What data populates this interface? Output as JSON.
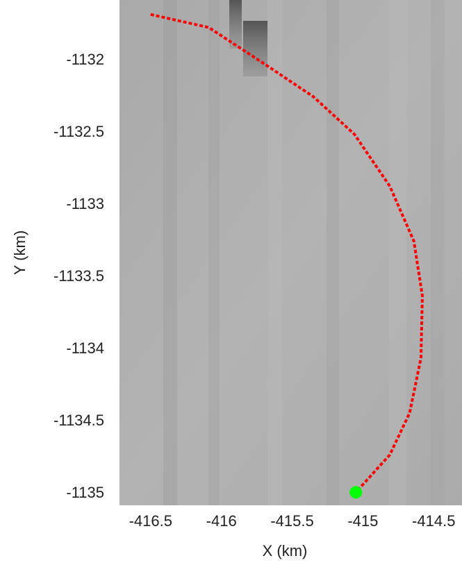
{
  "chart_data": {
    "type": "line",
    "xlabel": "X (km)",
    "ylabel": "Y (km)",
    "x": [
      -416.5,
      -416.09,
      -415.7,
      -415.35,
      -415.06,
      -414.81,
      -414.64,
      -414.58,
      -414.59,
      -414.67,
      -414.81,
      -415.05
    ],
    "values": [
      -1131.68,
      -1131.77,
      -1132.02,
      -1132.25,
      -1132.51,
      -1132.87,
      -1133.25,
      -1133.63,
      -1134.06,
      -1134.44,
      -1134.73,
      -1134.99
    ],
    "color": "#ff0000",
    "dashed": true,
    "start_point": {
      "x": -415.05,
      "y": -1134.99,
      "color": "#00ff00"
    },
    "xlim": [
      -416.72,
      -414.3
    ],
    "ylim": [
      -1135.08,
      -1131.58
    ],
    "xticks": [
      -416.5,
      -416,
      -415.5,
      -415,
      -414.5
    ],
    "yticks": [
      -1132,
      -1132.5,
      -1133,
      -1133.5,
      -1134,
      -1134.5,
      -1135
    ],
    "grid": false
  }
}
